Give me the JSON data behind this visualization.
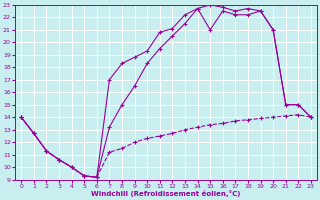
{
  "xlabel": "Windchill (Refroidissement éolien,°C)",
  "bg_color": "#c8eef0",
  "line_color": "#990099",
  "grid_color": "#ffffff",
  "xlim": [
    -0.5,
    23.5
  ],
  "ylim": [
    9,
    23
  ],
  "xticks": [
    0,
    1,
    2,
    3,
    4,
    5,
    6,
    7,
    8,
    9,
    10,
    11,
    12,
    13,
    14,
    15,
    16,
    17,
    18,
    19,
    20,
    21,
    22,
    23
  ],
  "yticks": [
    9,
    10,
    11,
    12,
    13,
    14,
    15,
    16,
    17,
    18,
    19,
    20,
    21,
    22,
    23
  ],
  "line1_x": [
    0,
    1,
    2,
    3,
    4,
    5,
    6,
    7,
    8,
    9,
    10,
    11,
    12,
    13,
    14,
    15,
    16,
    17,
    18,
    19,
    20,
    21,
    22,
    23
  ],
  "line1_y": [
    14.0,
    12.7,
    11.3,
    10.6,
    10.0,
    9.3,
    9.2,
    11.2,
    11.5,
    12.0,
    12.3,
    12.5,
    12.7,
    13.0,
    13.2,
    13.4,
    13.5,
    13.7,
    13.8,
    13.9,
    14.0,
    14.1,
    14.2,
    14.0
  ],
  "line2_x": [
    0,
    1,
    2,
    3,
    4,
    5,
    6,
    7,
    8,
    9,
    10,
    11,
    12,
    13,
    14,
    15,
    16,
    17,
    18,
    19,
    20,
    21,
    22,
    23
  ],
  "line2_y": [
    14.0,
    12.7,
    11.3,
    10.6,
    10.0,
    9.3,
    9.2,
    17.0,
    18.3,
    18.8,
    19.3,
    20.8,
    21.1,
    22.2,
    22.7,
    21.0,
    22.5,
    22.2,
    22.2,
    22.5,
    21.0,
    15.0,
    15.0,
    14.0
  ],
  "line3_x": [
    0,
    1,
    2,
    3,
    4,
    5,
    6,
    7,
    8,
    9,
    10,
    11,
    12,
    13,
    14,
    15,
    16,
    17,
    18,
    19,
    20,
    21,
    22,
    23
  ],
  "line3_y": [
    14.0,
    12.7,
    11.3,
    10.6,
    10.0,
    9.3,
    9.2,
    13.2,
    15.0,
    16.5,
    18.3,
    19.5,
    20.5,
    21.5,
    22.7,
    23.0,
    22.8,
    22.5,
    22.7,
    22.5,
    21.0,
    15.0,
    15.0,
    14.0
  ],
  "marker": "+",
  "markersize": 3,
  "linewidth": 0.8
}
